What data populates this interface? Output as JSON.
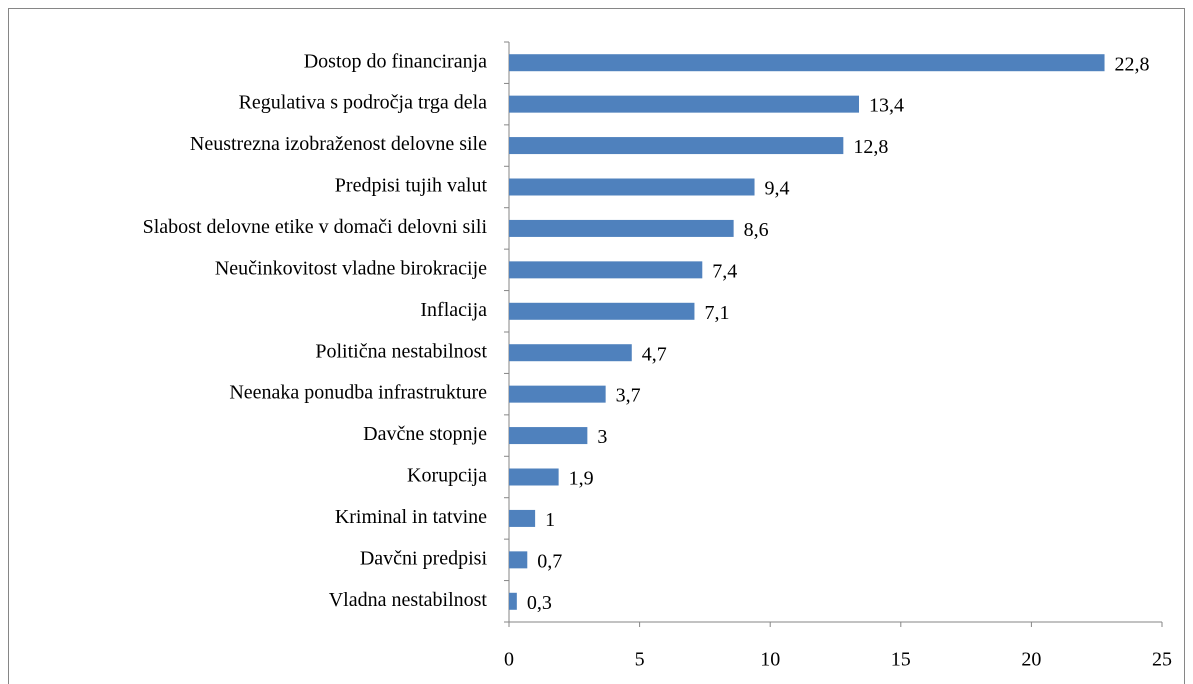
{
  "chart_data": {
    "type": "bar",
    "orientation": "horizontal",
    "categories": [
      "Dostop do financiranja",
      "Regulativa s področja trga dela",
      "Neustrezna izobraženost delovne sile",
      "Predpisi tujih valut",
      "Slabost delovne etike v domači delovni sili",
      "Neučinkovitost vladne birokracije",
      "Inflacija",
      "Politična nestabilnost",
      "Neenaka ponudba infrastrukture",
      "Davčne stopnje",
      "Korupcija",
      "Kriminal in tatvine",
      "Davčni predpisi",
      "Vladna nestabilnost"
    ],
    "values": [
      22.8,
      13.4,
      12.8,
      9.4,
      8.6,
      7.4,
      7.1,
      4.7,
      3.7,
      3,
      1.9,
      1,
      0.7,
      0.3
    ],
    "value_labels": [
      "22,8",
      "13,4",
      "12,8",
      "9,4",
      "8,6",
      "7,4",
      "7,1",
      "4,7",
      "3,7",
      "3",
      "1,9",
      "1",
      "0,7",
      "0,3"
    ],
    "color": "#4f81bd",
    "xlim": [
      0,
      25
    ],
    "xticks": [
      0,
      5,
      10,
      15,
      20,
      25
    ],
    "grid": false
  }
}
